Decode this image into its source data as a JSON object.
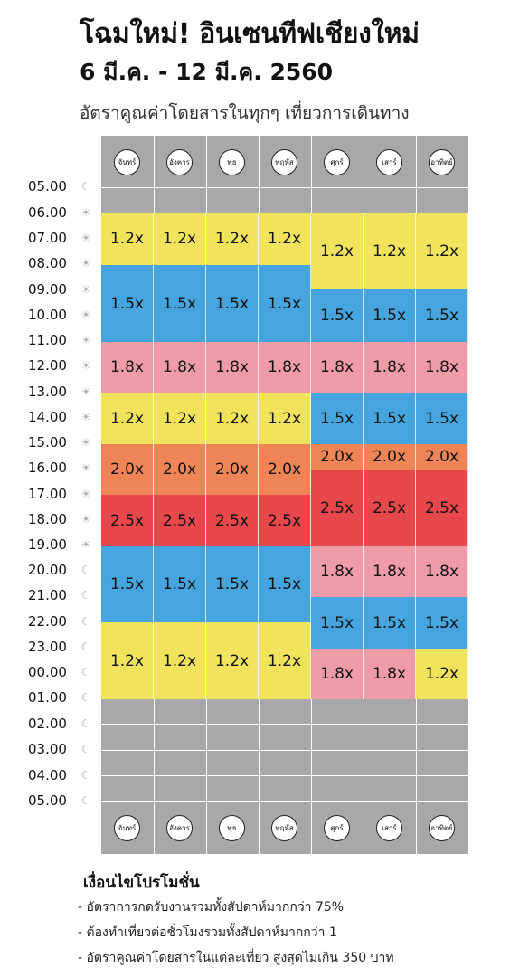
{
  "header": {
    "title": "โฉมใหม่! อินเซนทีฟเชียงใหม่",
    "dates": "6 มี.ค. - 12 มี.ค. 2560",
    "subtitle": "อัตราคูณค่าโดยสารในทุกๆ เที่ยวการเดินทาง"
  },
  "days": [
    "จันทร์",
    "อังคาร",
    "พุธ",
    "พฤหัส",
    "ศุกร์",
    "เสาร์",
    "อาทิตย์"
  ],
  "times": [
    {
      "label": "05.00",
      "icon": "moon-icon"
    },
    {
      "label": "06.00",
      "icon": "sun-icon"
    },
    {
      "label": "07.00",
      "icon": "sun-icon"
    },
    {
      "label": "08.00",
      "icon": "sun-icon"
    },
    {
      "label": "09.00",
      "icon": "sun-icon"
    },
    {
      "label": "10.00",
      "icon": "sun-icon"
    },
    {
      "label": "11.00",
      "icon": "sun-icon"
    },
    {
      "label": "12.00",
      "icon": "sun-icon"
    },
    {
      "label": "13.00",
      "icon": "sun-icon"
    },
    {
      "label": "14.00",
      "icon": "sun-icon"
    },
    {
      "label": "15.00",
      "icon": "sun-icon"
    },
    {
      "label": "16.00",
      "icon": "sun-icon"
    },
    {
      "label": "17.00",
      "icon": "sun-icon"
    },
    {
      "label": "18.00",
      "icon": "sun-icon"
    },
    {
      "label": "19.00",
      "icon": "sun-icon"
    },
    {
      "label": "20.00",
      "icon": "moon-icon"
    },
    {
      "label": "21.00",
      "icon": "moon-icon"
    },
    {
      "label": "22.00",
      "icon": "moon-icon"
    },
    {
      "label": "23.00",
      "icon": "moon-icon"
    },
    {
      "label": "00.00",
      "icon": "moon-icon"
    },
    {
      "label": "01.00",
      "icon": "moon-icon"
    },
    {
      "label": "02.00",
      "icon": "moon-icon"
    },
    {
      "label": "03.00",
      "icon": "moon-icon"
    },
    {
      "label": "04.00",
      "icon": "moon-icon"
    },
    {
      "label": "05.00",
      "icon": "moon-icon"
    }
  ],
  "multiplier_colors": {
    "1.2x": "#f2e35c",
    "1.5x": "#46a5de",
    "1.8x": "#f09ba8",
    "2.0x": "#ef8556",
    "2.5x": "#e8484b"
  },
  "schedule": {
    "weekday": [
      {
        "from": "07.00",
        "to": "09.00",
        "label": "1.2x"
      },
      {
        "from": "09.00",
        "to": "12.00",
        "label": "1.5x"
      },
      {
        "from": "12.00",
        "to": "14.00",
        "label": "1.8x"
      },
      {
        "from": "14.00",
        "to": "16.00",
        "label": "1.2x"
      },
      {
        "from": "16.00",
        "to": "18.00",
        "label": "2.0x"
      },
      {
        "from": "18.00",
        "to": "20.00",
        "label": "2.5x"
      },
      {
        "from": "20.00",
        "to": "23.00",
        "label": "1.5x"
      },
      {
        "from": "23.00",
        "to": "02.00",
        "label": "1.2x"
      }
    ],
    "friday_saturday": [
      {
        "from": "07.00",
        "to": "09.30",
        "label": "1.2x"
      },
      {
        "from": "09.30",
        "to": "12.00",
        "label": "1.5x"
      },
      {
        "from": "12.00",
        "to": "14.00",
        "label": "1.8x"
      },
      {
        "from": "14.00",
        "to": "16.00",
        "label": "1.5x"
      },
      {
        "from": "16.00",
        "to": "17.00",
        "label": "2.0x"
      },
      {
        "from": "17.00",
        "to": "20.00",
        "label": "2.5x"
      },
      {
        "from": "20.00",
        "to": "22.00",
        "label": "1.8x"
      },
      {
        "from": "22.00",
        "to": "23.00",
        "label": "1.5x"
      },
      {
        "from": "23.00",
        "to": "01.00",
        "label": "1.8x"
      }
    ],
    "sunday_last_block": {
      "from": "23.00",
      "to": "01.00",
      "label": "1.2x"
    }
  },
  "conditions": {
    "title": "เงื่อนไขโปรโมชั่น",
    "items": [
      "- อัตราการกดรับงานรวมทั้งสัปดาห์มากกว่า 75%",
      "- ต้องทำเที่ยวต่อชั่วโมงรวมทั้งสัปดาห์มากกว่า 1",
      "- อัตราคูณค่าโดยสารในแต่ละเที่ยว สูงสุดไม่เกิน 350 บาท"
    ]
  }
}
